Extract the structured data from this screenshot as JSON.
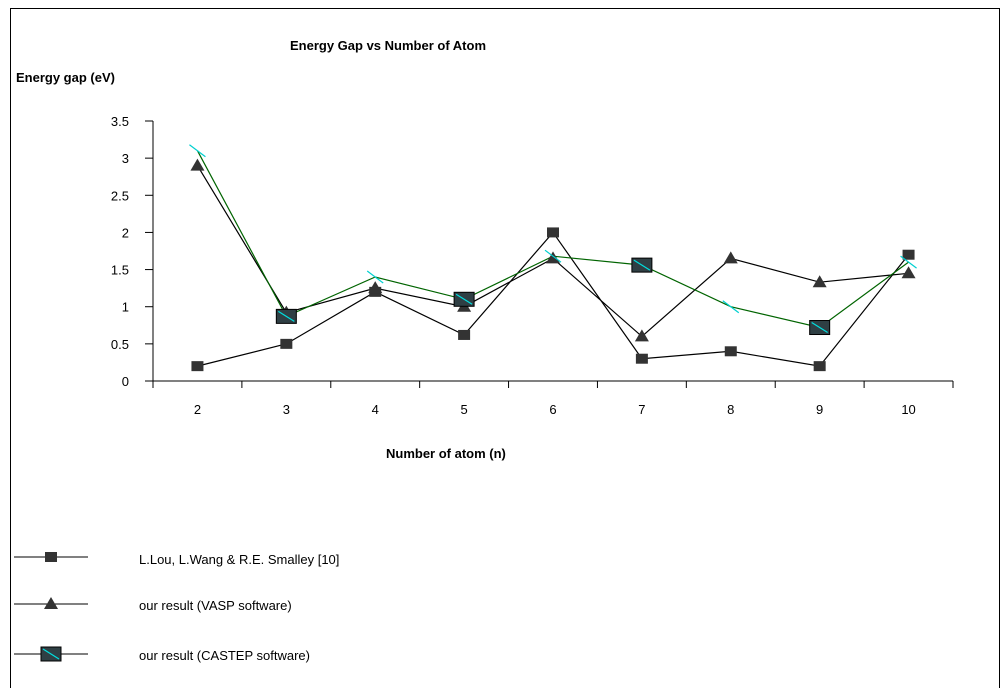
{
  "chart_data": {
    "type": "line",
    "title": "Energy Gap vs Number of Atom",
    "ylabel": "Energy gap (eV)",
    "xlabel": "Number of atom (n)",
    "categories": [
      "2",
      "3",
      "4",
      "5",
      "6",
      "7",
      "8",
      "9",
      "10"
    ],
    "ylim": [
      0,
      3.5
    ],
    "yticks": [
      "0",
      "0.5",
      "1",
      "1.5",
      "2",
      "2.5",
      "3",
      "3.5"
    ],
    "grid": false,
    "legend_position": "bottom-left",
    "series": [
      {
        "name": "L.Lou, L.Wang & R.E. Smalley [10]",
        "marker": "square",
        "values": [
          0.2,
          0.5,
          1.2,
          0.62,
          2.0,
          0.3,
          0.4,
          0.2,
          1.7
        ],
        "color": "#000000"
      },
      {
        "name": "our result (VASP software)",
        "marker": "triangle",
        "values": [
          2.9,
          0.92,
          1.25,
          1.0,
          1.65,
          0.6,
          1.65,
          1.33,
          1.45
        ],
        "color": "#000000"
      },
      {
        "name": "our result (CASTEP software)",
        "marker": "square-with-dash",
        "values": [
          3.1,
          0.87,
          1.4,
          1.1,
          1.68,
          1.56,
          1.0,
          0.72,
          1.6
        ],
        "color": "#006400"
      }
    ]
  }
}
